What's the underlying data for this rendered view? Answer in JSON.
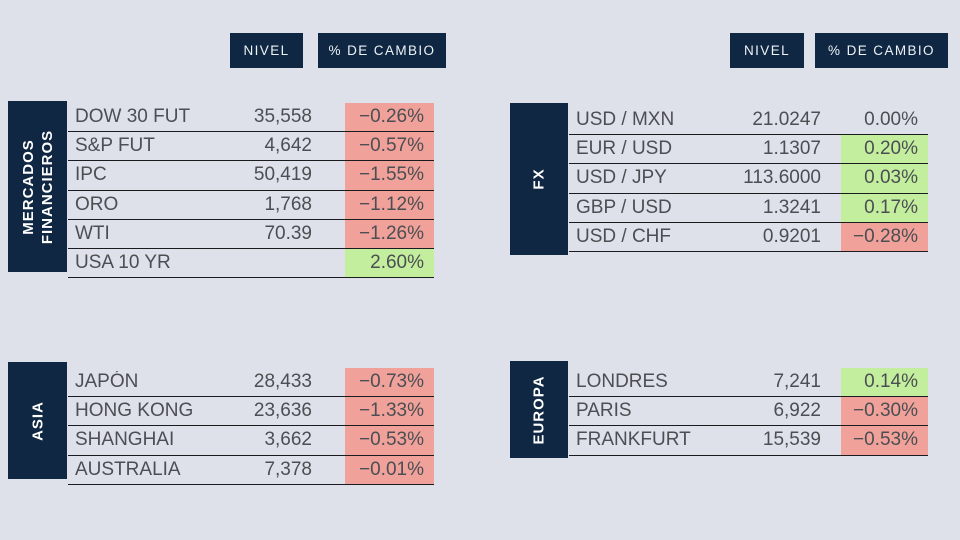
{
  "colors": {
    "background": "#dee1e9",
    "navy": "#0f2742",
    "positive_bg": "#c3ee9e",
    "negative_bg": "#f0a19a",
    "text": "#4b4e52",
    "separator": "#1a1b1e"
  },
  "column_headers": {
    "nivel": "NIVEL",
    "cambio": "% DE CAMBIO"
  },
  "sections": [
    {
      "id": "mercados-financieros",
      "label": "MERCADOS FINANCIEROS",
      "label_lines": [
        "MERCADOS",
        "FINANCIEROS"
      ],
      "rows": [
        {
          "name": "DOW 30 FUT",
          "level": "35,558",
          "change": "−0.26%",
          "dir": "neg"
        },
        {
          "name": "S&P FUT",
          "level": "4,642",
          "change": "−0.57%",
          "dir": "neg"
        },
        {
          "name": "IPC",
          "level": "50,419",
          "change": "−1.55%",
          "dir": "neg"
        },
        {
          "name": "ORO",
          "level": "1,768",
          "change": "−1.12%",
          "dir": "neg"
        },
        {
          "name": "WTI",
          "level": "70.39",
          "change": "−1.26%",
          "dir": "neg"
        },
        {
          "name": "USA 10 YR",
          "level": "",
          "change": "2.60%",
          "dir": "pos"
        }
      ]
    },
    {
      "id": "fx",
      "label": "FX",
      "label_lines": [
        "FX"
      ],
      "rows": [
        {
          "name": "USD / MXN",
          "level": "21.0247",
          "change": "0.00%",
          "dir": "flat"
        },
        {
          "name": "EUR / USD",
          "level": "1.1307",
          "change": "0.20%",
          "dir": "pos"
        },
        {
          "name": "USD / JPY",
          "level": "113.6000",
          "change": "0.03%",
          "dir": "pos"
        },
        {
          "name": "GBP / USD",
          "level": "1.3241",
          "change": "0.17%",
          "dir": "pos"
        },
        {
          "name": "USD / CHF",
          "level": "0.9201",
          "change": "−0.28%",
          "dir": "neg"
        }
      ]
    },
    {
      "id": "asia",
      "label": "ASIA",
      "label_lines": [
        "ASIA"
      ],
      "rows": [
        {
          "name": "JAPÓN",
          "level": "28,433",
          "change": "−0.73%",
          "dir": "neg"
        },
        {
          "name": "HONG KONG",
          "level": "23,636",
          "change": "−1.33%",
          "dir": "neg"
        },
        {
          "name": "SHANGHAI",
          "level": "3,662",
          "change": "−0.53%",
          "dir": "neg"
        },
        {
          "name": "AUSTRALIA",
          "level": "7,378",
          "change": "−0.01%",
          "dir": "neg"
        }
      ]
    },
    {
      "id": "europa",
      "label": "EUROPA",
      "label_lines": [
        "EUROPA"
      ],
      "rows": [
        {
          "name": "LONDRES",
          "level": "7,241",
          "change": "0.14%",
          "dir": "pos"
        },
        {
          "name": "PARIS",
          "level": "6,922",
          "change": "−0.30%",
          "dir": "neg"
        },
        {
          "name": "FRANKFURT",
          "level": "15,539",
          "change": "−0.53%",
          "dir": "neg"
        }
      ]
    }
  ],
  "chart_data": [
    {
      "type": "table",
      "title": "MERCADOS FINANCIEROS",
      "columns": [
        "",
        "NIVEL",
        "% DE CAMBIO"
      ],
      "rows": [
        [
          "DOW 30 FUT",
          "35,558",
          "−0.26%"
        ],
        [
          "S&P FUT",
          "4,642",
          "−0.57%"
        ],
        [
          "IPC",
          "50,419",
          "−1.55%"
        ],
        [
          "ORO",
          "1,768",
          "−1.12%"
        ],
        [
          "WTI",
          "70.39",
          "−1.26%"
        ],
        [
          "USA 10 YR",
          "",
          "2.60%"
        ]
      ]
    },
    {
      "type": "table",
      "title": "FX",
      "columns": [
        "",
        "NIVEL",
        "% DE CAMBIO"
      ],
      "rows": [
        [
          "USD / MXN",
          "21.0247",
          "0.00%"
        ],
        [
          "EUR / USD",
          "1.1307",
          "0.20%"
        ],
        [
          "USD / JPY",
          "113.6000",
          "0.03%"
        ],
        [
          "GBP / USD",
          "1.3241",
          "0.17%"
        ],
        [
          "USD / CHF",
          "0.9201",
          "−0.28%"
        ]
      ]
    },
    {
      "type": "table",
      "title": "ASIA",
      "columns": [
        "",
        "NIVEL",
        "% DE CAMBIO"
      ],
      "rows": [
        [
          "JAPÓN",
          "28,433",
          "−0.73%"
        ],
        [
          "HONG KONG",
          "23,636",
          "−1.33%"
        ],
        [
          "SHANGHAI",
          "3,662",
          "−0.53%"
        ],
        [
          "AUSTRALIA",
          "7,378",
          "−0.01%"
        ]
      ]
    },
    {
      "type": "table",
      "title": "EUROPA",
      "columns": [
        "",
        "NIVEL",
        "% DE CAMBIO"
      ],
      "rows": [
        [
          "LONDRES",
          "7,241",
          "0.14%"
        ],
        [
          "PARIS",
          "6,922",
          "−0.30%"
        ],
        [
          "FRANKFURT",
          "15,539",
          "−0.53%"
        ]
      ]
    }
  ]
}
